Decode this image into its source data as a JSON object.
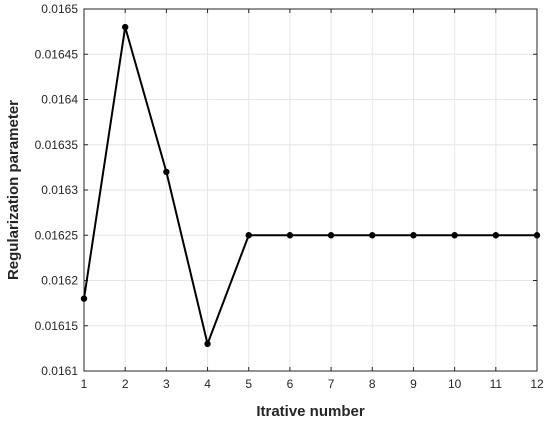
{
  "chart_data": {
    "type": "line",
    "title": "",
    "xlabel": "Itrative number",
    "ylabel": "Regularization parameter",
    "xlim": [
      1,
      12
    ],
    "ylim": [
      0.0161,
      0.0165
    ],
    "grid": true,
    "x_ticks": [
      "1",
      "2",
      "3",
      "4",
      "5",
      "6",
      "7",
      "8",
      "9",
      "10",
      "11",
      "12"
    ],
    "y_ticks": [
      "0.0161",
      "0.01615",
      "0.0162",
      "0.01625",
      "0.0163",
      "0.01635",
      "0.0164",
      "0.01645",
      "0.0165"
    ],
    "x_tick_values": [
      1,
      2,
      3,
      4,
      5,
      6,
      7,
      8,
      9,
      10,
      11,
      12
    ],
    "y_tick_values": [
      0.0161,
      0.01615,
      0.0162,
      0.01625,
      0.0163,
      0.01635,
      0.0164,
      0.01645,
      0.0165
    ],
    "series": [
      {
        "color": "#000000",
        "marker": "circle",
        "x": [
          1,
          2,
          3,
          4,
          5,
          6,
          7,
          8,
          9,
          10,
          11,
          12
        ],
        "y": [
          0.01618,
          0.01648,
          0.01632,
          0.01613,
          0.01625,
          0.01625,
          0.01625,
          0.01625,
          0.01625,
          0.01625,
          0.01625,
          0.01625
        ]
      }
    ]
  }
}
